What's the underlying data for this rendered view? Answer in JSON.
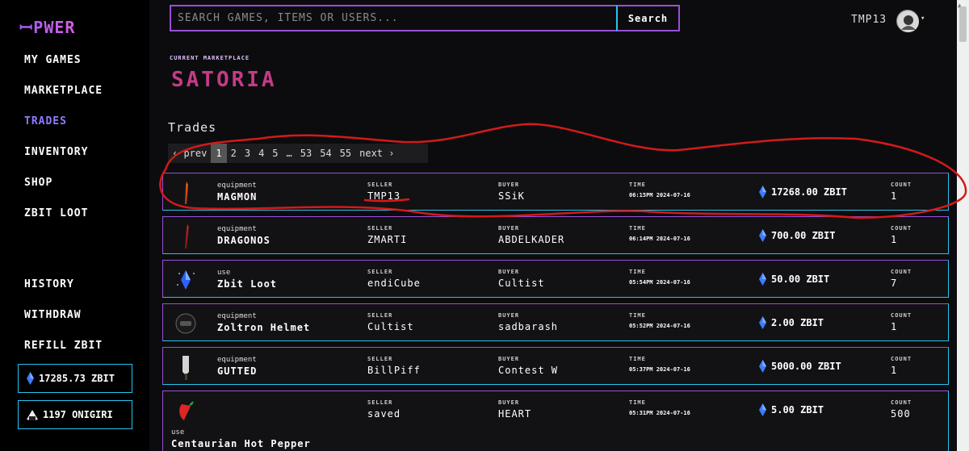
{
  "sidebar": {
    "logo": "ꟷPWER",
    "nav": [
      "MY GAMES",
      "MARKETPLACE",
      "TRADES",
      "INVENTORY",
      "SHOP",
      "ZBIT LOOT"
    ],
    "nav_lower": [
      "HISTORY",
      "WITHDRAW",
      "REFILL ZBIT"
    ],
    "balances": {
      "zbit": "17285.73 ZBIT",
      "onigiri": "1197 ONIGIRI"
    }
  },
  "header": {
    "search_placeholder": "SEARCH GAMES, ITEMS OR USERS...",
    "search_button": "Search",
    "username": "TMP13"
  },
  "marketplace": {
    "label": "CURRENT MARKETPLACE",
    "name": "SATORIA"
  },
  "trades": {
    "title": "Trades",
    "pager": [
      "‹ prev",
      "1",
      "2",
      "3",
      "4",
      "5",
      "…",
      "53",
      "54",
      "55",
      "next ›"
    ],
    "current_page": "1",
    "labels": {
      "seller": "SELLER",
      "buyer": "BUYER",
      "time": "TIME",
      "count": "COUNT"
    },
    "rows": [
      {
        "kind": "equipment",
        "name": "MAGMON",
        "seller": "TMP13",
        "buyer": "SSiK",
        "time": "06:15PM 2024-07-16",
        "price": "17268.00 ZBIT",
        "count": "1",
        "icon": "red-blade-icon"
      },
      {
        "kind": "equipment",
        "name": "DRAGONOS",
        "seller": "ZMARTI",
        "buyer": "ABDELKADER",
        "time": "06:14PM 2024-07-16",
        "price": "700.00 ZBIT",
        "count": "1",
        "icon": "crimson-sword-icon"
      },
      {
        "kind": "use",
        "name": "Zbit Loot",
        "seller": "endiCube",
        "buyer": "Cultist",
        "time": "05:54PM 2024-07-16",
        "price": "50.00 ZBIT",
        "count": "7",
        "icon": "zbit-crystal-icon"
      },
      {
        "kind": "equipment",
        "name": "Zoltron Helmet",
        "seller": "Cultist",
        "buyer": "sadbarash",
        "time": "05:52PM 2024-07-16",
        "price": "2.00 ZBIT",
        "count": "1",
        "icon": "helmet-icon"
      },
      {
        "kind": "equipment",
        "name": "GUTTED",
        "seller": "BillPiff",
        "buyer": "Contest W",
        "time": "05:37PM 2024-07-16",
        "price": "5000.00 ZBIT",
        "count": "1",
        "icon": "cleaver-icon"
      },
      {
        "kind": "use",
        "name": "Centaurian Hot Pepper",
        "seller": "saved",
        "buyer": "HEART",
        "time": "05:31PM 2024-07-16",
        "price": "5.00 ZBIT",
        "count": "500",
        "icon": "hot-pepper-icon"
      }
    ]
  },
  "colors": {
    "accent_purple": "#9a4fd9",
    "accent_cyan": "#23c6f0",
    "title_pink": "#c33b86",
    "active_nav": "#8f7bff",
    "annotation_red": "#d41a1a"
  }
}
